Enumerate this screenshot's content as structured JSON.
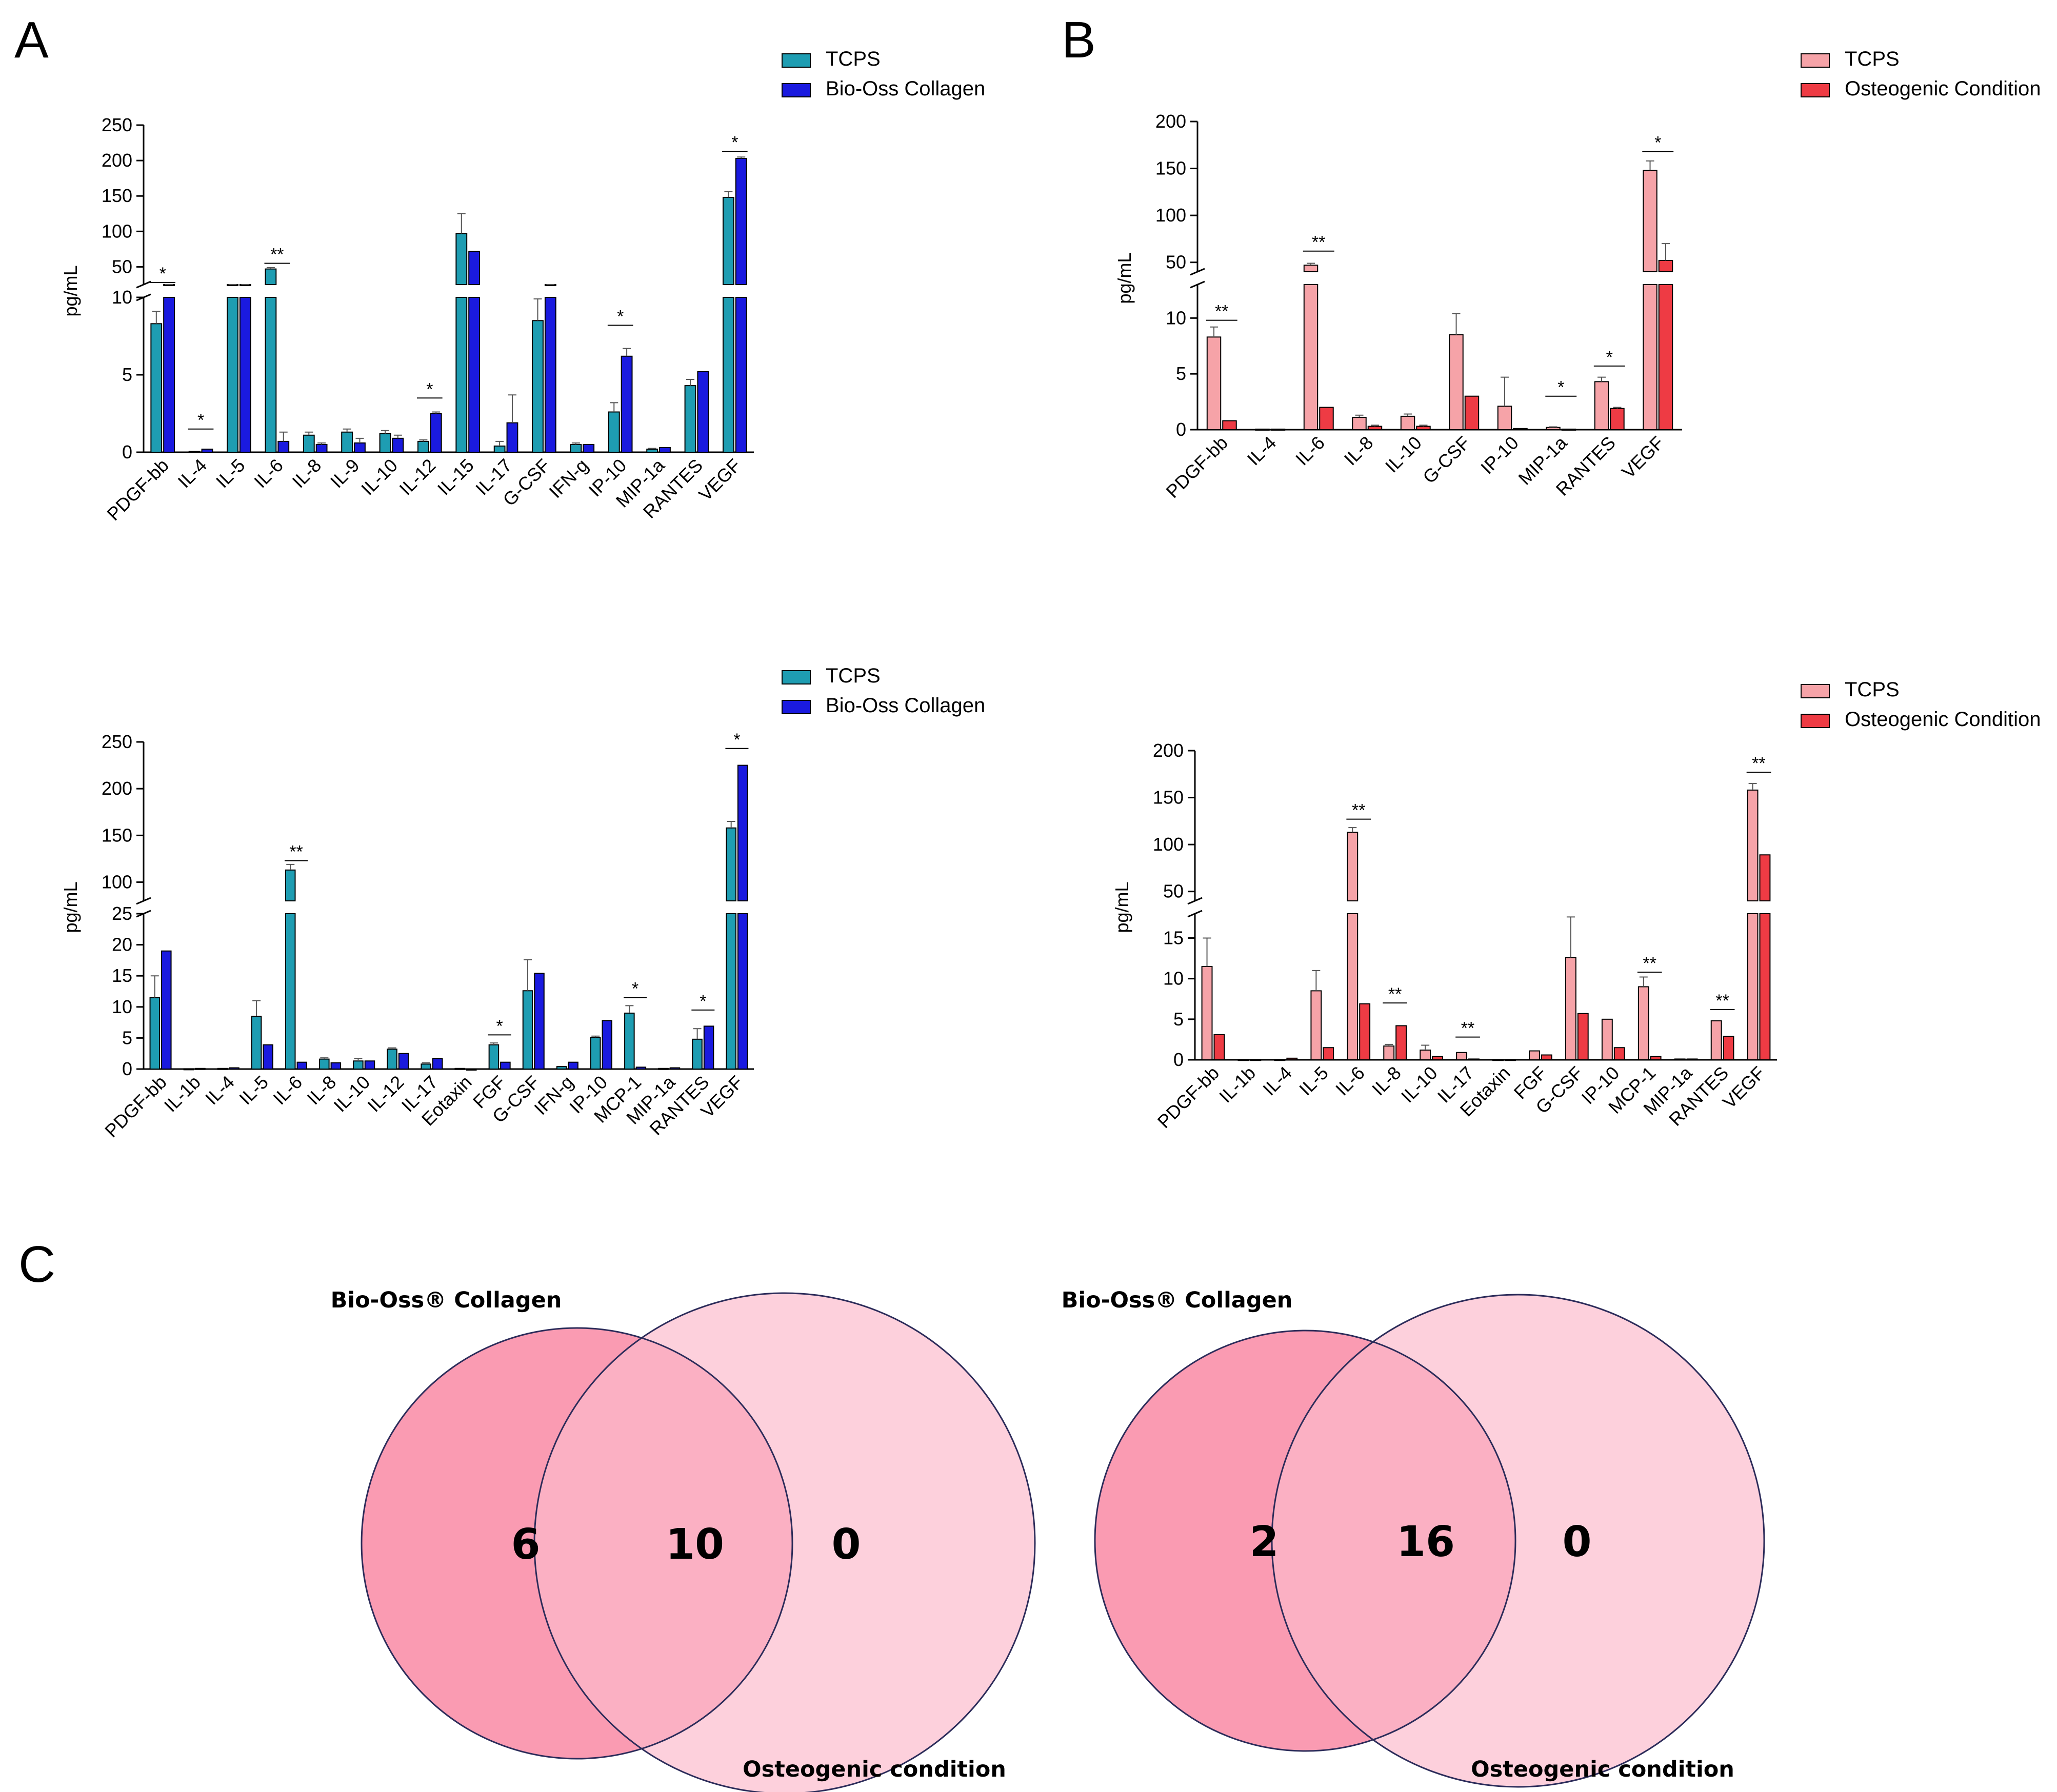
{
  "panel_labels": {
    "A": "A",
    "B": "B",
    "C": "C"
  },
  "colors": {
    "tcps_teal": "#1e9db2",
    "bio_oss_blue": "#1a1adf",
    "tcps_pink": "#f6a3a8",
    "osteo_red": "#ee3b44",
    "venn_left": "#fa9bb2",
    "venn_right": "#fdd0dc",
    "venn_overlap": "#fbb0c3",
    "venn_stroke": "#2c2c5a"
  },
  "chart_data": [
    {
      "id": "A-top",
      "type": "bar",
      "ylabel": "pg/mL",
      "legend": [
        "TCPS",
        "Bio-Oss Collagen"
      ],
      "categories": [
        "PDGF-bb",
        "IL-4",
        "IL-5",
        "IL-6",
        "IL-8",
        "IL-9",
        "IL-10",
        "IL-12",
        "IL-15",
        "IL-17",
        "G-CSF",
        "IFN-g",
        "IP-10",
        "MIP-1a",
        "RANTES",
        "VEGF"
      ],
      "series": [
        {
          "name": "TCPS",
          "values": [
            8.3,
            0.05,
            15,
            47,
            1.1,
            1.3,
            1.2,
            0.7,
            97,
            0.4,
            8.5,
            0.5,
            2.6,
            0.2,
            4.3,
            148
          ],
          "errors": [
            0.8,
            0,
            3,
            2,
            0.2,
            0.2,
            0.2,
            0.1,
            28,
            0.3,
            1.4,
            0.1,
            0.6,
            0.05,
            0.4,
            8
          ]
        },
        {
          "name": "Bio-Oss Collagen",
          "values": [
            19,
            0.2,
            15,
            0.7,
            0.5,
            0.6,
            0.9,
            2.5,
            72,
            1.9,
            19,
            0.5,
            6.2,
            0.3,
            5.2,
            203
          ],
          "errors": [
            1,
            0,
            10,
            0.6,
            0.1,
            0.3,
            0.2,
            0.1,
            0,
            1.8,
            3,
            0,
            0.5,
            0,
            0,
            2
          ]
        }
      ],
      "sig": [
        {
          "cat": 0,
          "label": "*",
          "seg": "upper",
          "y": 28
        },
        {
          "cat": 1,
          "label": "*",
          "seg": "lower",
          "y": 1.5
        },
        {
          "cat": 3,
          "label": "**",
          "seg": "upper",
          "y": 55
        },
        {
          "cat": 7,
          "label": "*",
          "seg": "lower",
          "y": 3.5
        },
        {
          "cat": 12,
          "label": "*",
          "seg": "lower",
          "y": 8.2
        },
        {
          "cat": 15,
          "label": "*",
          "seg": "upper",
          "y": 213
        }
      ],
      "axis": {
        "lower": [
          0,
          10
        ],
        "lower_ticks": [
          0,
          5,
          10
        ],
        "upper": [
          25,
          250
        ],
        "upper_ticks": [
          50,
          100,
          150,
          200,
          250
        ]
      }
    },
    {
      "id": "B-top",
      "type": "bar",
      "ylabel": "pg/mL",
      "legend": [
        "TCPS",
        "Osteogenic Condition"
      ],
      "categories": [
        "PDGF-bb",
        "IL-4",
        "IL-6",
        "IL-8",
        "IL-10",
        "G-CSF",
        "IP-10",
        "MIP-1a",
        "RANTES",
        "VEGF"
      ],
      "series": [
        {
          "name": "TCPS",
          "values": [
            8.3,
            0.05,
            47,
            1.1,
            1.2,
            8.5,
            2.1,
            0.2,
            4.3,
            148
          ],
          "errors": [
            0.9,
            0,
            2,
            0.2,
            0.2,
            1.9,
            2.6,
            0.05,
            0.4,
            10
          ]
        },
        {
          "name": "Osteogenic Condition",
          "values": [
            0.8,
            0.05,
            2.0,
            0.3,
            0.3,
            3.0,
            0.1,
            0.05,
            1.9,
            52
          ],
          "errors": [
            0,
            0,
            0,
            0.1,
            0.1,
            0,
            0,
            0,
            0.1,
            18
          ]
        }
      ],
      "sig": [
        {
          "cat": 0,
          "label": "**",
          "seg": "lower",
          "y": 9.8
        },
        {
          "cat": 2,
          "label": "**",
          "seg": "upper",
          "y": 62
        },
        {
          "cat": 7,
          "label": "*",
          "seg": "lower",
          "y": 3.0
        },
        {
          "cat": 8,
          "label": "*",
          "seg": "lower",
          "y": 5.7
        },
        {
          "cat": 9,
          "label": "*",
          "seg": "upper",
          "y": 168
        }
      ],
      "axis": {
        "lower": [
          0,
          13
        ],
        "lower_ticks": [
          0,
          5,
          10
        ],
        "upper": [
          40,
          200
        ],
        "upper_ticks": [
          50,
          100,
          150,
          200
        ]
      }
    },
    {
      "id": "A-bottom",
      "type": "bar",
      "ylabel": "pg/mL",
      "legend": [
        "TCPS",
        "Bio-Oss Collagen"
      ],
      "categories": [
        "PDGF-bb",
        "IL-1b",
        "IL-4",
        "IL-5",
        "IL-6",
        "IL-8",
        "IL-10",
        "IL-12",
        "IL-17",
        "Eotaxin",
        "FGF",
        "G-CSF",
        "IFN-g",
        "IP-10",
        "MCP-1",
        "MIP-1a",
        "RANTES",
        "VEGF"
      ],
      "series": [
        {
          "name": "TCPS",
          "values": [
            11.5,
            0.05,
            0.1,
            8.5,
            113,
            1.6,
            1.3,
            3.2,
            0.8,
            0.1,
            3.9,
            12.6,
            0.4,
            5.1,
            9.0,
            0.1,
            4.8,
            158
          ],
          "errors": [
            3.5,
            0,
            0,
            2.5,
            6,
            0.2,
            0.4,
            0.2,
            0.2,
            0,
            0.3,
            5,
            0,
            0.2,
            1.2,
            0,
            1.7,
            7
          ]
        },
        {
          "name": "Bio-Oss Collagen",
          "values": [
            19,
            0.1,
            0.2,
            3.9,
            1.1,
            1.0,
            1.3,
            2.5,
            1.7,
            0,
            1.1,
            15.4,
            1.1,
            7.8,
            0.3,
            0.2,
            6.9,
            225
          ]
        }
      ],
      "sig": [
        {
          "cat": 4,
          "label": "**",
          "seg": "upper",
          "y": 123
        },
        {
          "cat": 10,
          "label": "*",
          "seg": "lower",
          "y": 5.5
        },
        {
          "cat": 14,
          "label": "*",
          "seg": "lower",
          "y": 11.5
        },
        {
          "cat": 16,
          "label": "*",
          "seg": "lower",
          "y": 9.5
        },
        {
          "cat": 17,
          "label": "*",
          "seg": "upper",
          "y": 243
        }
      ],
      "axis": {
        "lower": [
          0,
          25
        ],
        "lower_ticks": [
          0,
          5,
          10,
          15,
          20,
          25
        ],
        "upper": [
          80,
          250
        ],
        "upper_ticks": [
          100,
          150,
          200,
          250
        ]
      }
    },
    {
      "id": "B-bottom",
      "type": "bar",
      "ylabel": "pg/mL",
      "legend": [
        "TCPS",
        "Osteogenic Condition"
      ],
      "categories": [
        "PDGF-bb",
        "IL-1b",
        "IL-4",
        "IL-5",
        "IL-6",
        "IL-8",
        "IL-10",
        "IL-17",
        "Eotaxin",
        "FGF",
        "G-CSF",
        "IP-10",
        "MCP-1",
        "MIP-1a",
        "RANTES",
        "VEGF"
      ],
      "series": [
        {
          "name": "TCPS",
          "values": [
            11.5,
            0.05,
            0.05,
            8.5,
            113,
            1.7,
            1.2,
            0.9,
            0.05,
            1.1,
            12.6,
            5.0,
            9.0,
            0.1,
            4.8,
            158
          ],
          "errors": [
            3.5,
            0,
            0,
            2.5,
            5,
            0.2,
            0.6,
            0,
            0,
            0,
            5,
            0,
            1.2,
            0,
            0,
            7
          ]
        },
        {
          "name": "Osteogenic Condition",
          "values": [
            3.1,
            0.05,
            0.2,
            1.5,
            6.9,
            4.2,
            0.4,
            0.1,
            0.05,
            0.6,
            5.7,
            1.5,
            0.4,
            0.1,
            2.9,
            89
          ]
        }
      ],
      "sig": [
        {
          "cat": 4,
          "label": "**",
          "seg": "upper",
          "y": 127
        },
        {
          "cat": 5,
          "label": "**",
          "seg": "lower",
          "y": 7.0
        },
        {
          "cat": 7,
          "label": "**",
          "seg": "lower",
          "y": 2.8
        },
        {
          "cat": 12,
          "label": "**",
          "seg": "lower",
          "y": 10.8
        },
        {
          "cat": 14,
          "label": "**",
          "seg": "lower",
          "y": 6.2
        },
        {
          "cat": 15,
          "label": "**",
          "seg": "upper",
          "y": 177
        }
      ],
      "axis": {
        "lower": [
          0,
          18
        ],
        "lower_ticks": [
          0,
          5,
          10,
          15
        ],
        "upper": [
          40,
          200
        ],
        "upper_ticks": [
          50,
          100,
          150,
          200
        ]
      }
    }
  ],
  "venn": [
    {
      "title_left": "Bio-Oss® Collagen",
      "title_bottom": "Osteogenic condition",
      "left_only": "6",
      "both": "10",
      "right_only": "0"
    },
    {
      "title_left": "Bio-Oss® Collagen",
      "title_bottom": "Osteogenic condition",
      "left_only": "2",
      "both": "16",
      "right_only": "0"
    }
  ]
}
